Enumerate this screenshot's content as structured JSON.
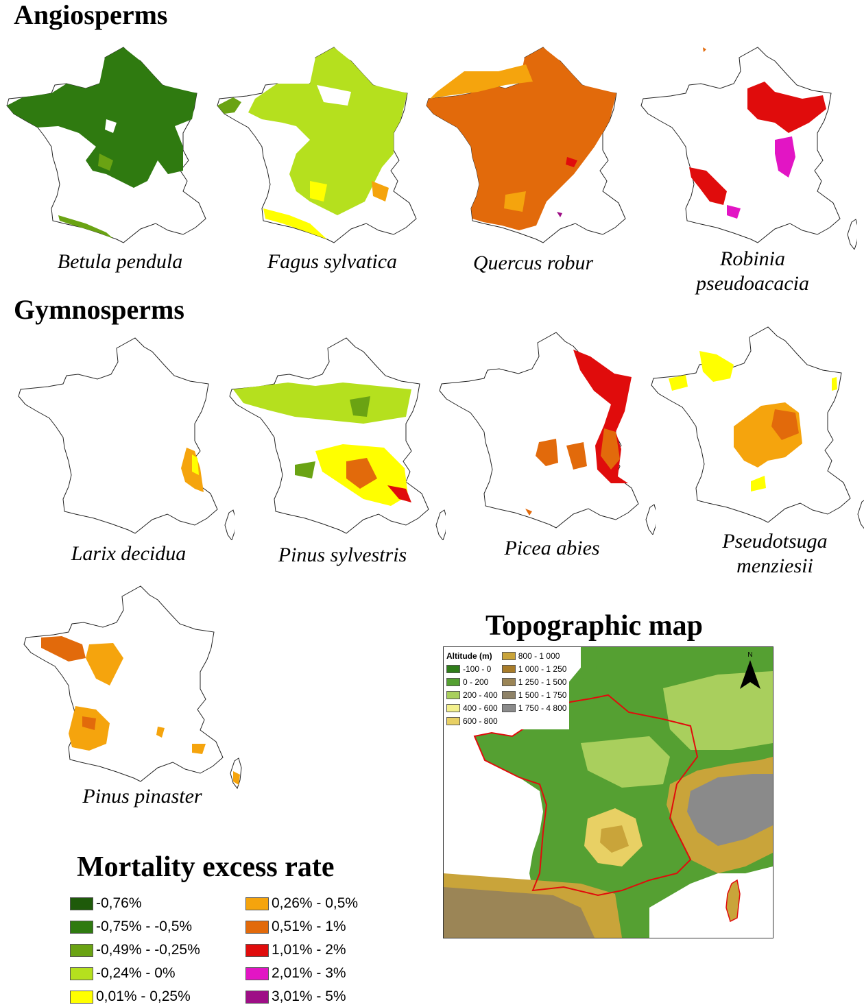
{
  "sections": {
    "angiosperms": "Angiosperms",
    "gymnosperms": "Gymnosperms",
    "topographic": "Topographic map"
  },
  "maps": [
    {
      "id": "betula",
      "label": "Betula pendula"
    },
    {
      "id": "fagus",
      "label": "Fagus sylvatica"
    },
    {
      "id": "quercus",
      "label": "Quercus robur"
    },
    {
      "id": "robinia",
      "label": "Robinia pseudoacacia"
    },
    {
      "id": "larix",
      "label": "Larix decidua"
    },
    {
      "id": "pinus_sylvestris",
      "label": "Pinus sylvestris"
    },
    {
      "id": "picea",
      "label": "Picea abies"
    },
    {
      "id": "pseudotsuga",
      "label": "Pseudotsuga menziesii"
    },
    {
      "id": "pinus_pinaster",
      "label": "Pinus pinaster"
    }
  ],
  "legend": {
    "title": "Mortality excess rate",
    "classes": [
      {
        "label": "-0,76%",
        "color": "#1e5a0a"
      },
      {
        "label": "-0,75% - -0,5%",
        "color": "#2f7a10"
      },
      {
        "label": "-0,49% - -0,25%",
        "color": "#6aa313"
      },
      {
        "label": "-0,24% - 0%",
        "color": "#b5e01e"
      },
      {
        "label": "0,01% - 0,25%",
        "color": "#ffff00"
      },
      {
        "label": "0,26% - 0,5%",
        "color": "#f5a40d"
      },
      {
        "label": "0,51% - 1%",
        "color": "#e26a0b"
      },
      {
        "label": "1,01% - 2%",
        "color": "#e00c0c"
      },
      {
        "label": "2,01% - 3%",
        "color": "#e215c4"
      },
      {
        "label": "3,01% - 5%",
        "color": "#9e0f86"
      }
    ]
  },
  "topo": {
    "legend_title": "Altitude (m)",
    "north_label": "N",
    "classes": [
      {
        "label": "-100 - 0",
        "color": "#2f7d1a"
      },
      {
        "label": "0 - 200",
        "color": "#55a032"
      },
      {
        "label": "200 - 400",
        "color": "#a9cf5d"
      },
      {
        "label": "400 - 600",
        "color": "#f3f08c"
      },
      {
        "label": "600 - 800",
        "color": "#e8d064"
      },
      {
        "label": "800 - 1 000",
        "color": "#c9a43a"
      },
      {
        "label": "1 000 - 1 250",
        "color": "#a87c2a"
      },
      {
        "label": "1 250 - 1 500",
        "color": "#9b8556"
      },
      {
        "label": "1 500 - 1 750",
        "color": "#8f8368"
      },
      {
        "label": "1 750 - 4 800",
        "color": "#8a8a8a"
      }
    ]
  }
}
